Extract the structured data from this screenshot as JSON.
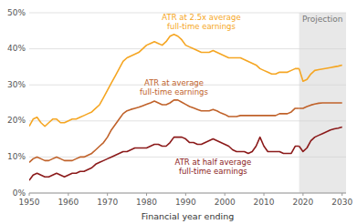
{
  "chart_data": {
    "type": "line",
    "xlabel": "Financial year ending",
    "xlim": [
      1950,
      2031
    ],
    "ylim": [
      0,
      0.5
    ],
    "xticks": [
      1950,
      1960,
      1970,
      1980,
      1990,
      2000,
      2010,
      2020,
      2030
    ],
    "yticks": [
      {
        "value": 0,
        "label": "0%"
      },
      {
        "value": 0.1,
        "label": "10%"
      },
      {
        "value": 0.2,
        "label": "20%"
      },
      {
        "value": 0.3,
        "label": "30%"
      },
      {
        "value": 0.4,
        "label": "40%"
      },
      {
        "value": 0.5,
        "label": "50%"
      }
    ],
    "grid": true,
    "projection_start": 2019,
    "projection_label": "Projection",
    "projection_color": "#e8e8e8",
    "series": [
      {
        "name": "ATR at 2.5x average\nfull-time earnings",
        "color": "#f5a623",
        "x": [
          1950,
          1951,
          1952,
          1953,
          1954,
          1955,
          1956,
          1957,
          1958,
          1959,
          1960,
          1961,
          1962,
          1963,
          1964,
          1965,
          1966,
          1967,
          1968,
          1969,
          1970,
          1971,
          1972,
          1973,
          1974,
          1975,
          1976,
          1977,
          1978,
          1979,
          1980,
          1981,
          1982,
          1983,
          1984,
          1985,
          1986,
          1987,
          1988,
          1989,
          1990,
          1991,
          1992,
          1993,
          1994,
          1995,
          1996,
          1997,
          1998,
          1999,
          2000,
          2001,
          2002,
          2003,
          2004,
          2005,
          2006,
          2007,
          2008,
          2009,
          2010,
          2011,
          2012,
          2013,
          2014,
          2015,
          2016,
          2017,
          2018,
          2019
        ],
        "values": [
          0.185,
          0.205,
          0.21,
          0.195,
          0.185,
          0.195,
          0.205,
          0.205,
          0.195,
          0.195,
          0.2,
          0.205,
          0.205,
          0.21,
          0.215,
          0.22,
          0.225,
          0.235,
          0.245,
          0.265,
          0.285,
          0.305,
          0.325,
          0.345,
          0.365,
          0.375,
          0.38,
          0.385,
          0.39,
          0.4,
          0.41,
          0.415,
          0.42,
          0.415,
          0.41,
          0.42,
          0.435,
          0.44,
          0.435,
          0.425,
          0.41,
          0.405,
          0.4,
          0.395,
          0.39,
          0.39,
          0.39,
          0.395,
          0.39,
          0.385,
          0.38,
          0.375,
          0.375,
          0.375,
          0.375,
          0.37,
          0.365,
          0.36,
          0.355,
          0.345,
          0.34,
          0.335,
          0.33,
          0.33,
          0.335,
          0.335,
          0.335,
          0.34,
          0.345,
          0.345
        ]
      },
      {
        "color": "#f5a623",
        "x": [
          2019,
          2020,
          2021,
          2022,
          2023,
          2024,
          2025,
          2026,
          2027,
          2028,
          2029,
          2030
        ],
        "values": [
          0.345,
          0.31,
          0.315,
          0.33,
          0.34,
          0.342,
          0.344,
          0.346,
          0.348,
          0.35,
          0.352,
          0.355
        ]
      },
      {
        "name": "ATR at average\nfull-time earnings",
        "color": "#c0622a",
        "x": [
          1950,
          1951,
          1952,
          1953,
          1954,
          1955,
          1956,
          1957,
          1958,
          1959,
          1960,
          1961,
          1962,
          1963,
          1964,
          1965,
          1966,
          1967,
          1968,
          1969,
          1970,
          1971,
          1972,
          1973,
          1974,
          1975,
          1976,
          1977,
          1978,
          1979,
          1980,
          1981,
          1982,
          1983,
          1984,
          1985,
          1986,
          1987,
          1988,
          1989,
          1990,
          1991,
          1992,
          1993,
          1994,
          1995,
          1996,
          1997,
          1998,
          1999,
          2000,
          2001,
          2002,
          2003,
          2004,
          2005,
          2006,
          2007,
          2008,
          2009,
          2010,
          2011,
          2012,
          2013,
          2014,
          2015,
          2016,
          2017,
          2018,
          2019
        ],
        "values": [
          0.085,
          0.095,
          0.1,
          0.095,
          0.09,
          0.09,
          0.095,
          0.1,
          0.095,
          0.09,
          0.09,
          0.09,
          0.095,
          0.1,
          0.1,
          0.105,
          0.11,
          0.12,
          0.13,
          0.14,
          0.155,
          0.175,
          0.19,
          0.205,
          0.22,
          0.228,
          0.232,
          0.235,
          0.238,
          0.242,
          0.246,
          0.25,
          0.255,
          0.25,
          0.245,
          0.245,
          0.25,
          0.258,
          0.258,
          0.252,
          0.246,
          0.24,
          0.236,
          0.232,
          0.228,
          0.228,
          0.228,
          0.232,
          0.228,
          0.222,
          0.218,
          0.212,
          0.212,
          0.212,
          0.215,
          0.215,
          0.215,
          0.215,
          0.215,
          0.215,
          0.215,
          0.215,
          0.215,
          0.215,
          0.22,
          0.22,
          0.22,
          0.225,
          0.235,
          0.235
        ]
      },
      {
        "color": "#c0622a",
        "x": [
          2019,
          2020,
          2021,
          2022,
          2023,
          2024,
          2025,
          2026,
          2027,
          2028,
          2029,
          2030
        ],
        "values": [
          0.235,
          0.235,
          0.24,
          0.244,
          0.247,
          0.249,
          0.25,
          0.25,
          0.25,
          0.25,
          0.25,
          0.25
        ]
      },
      {
        "name": "ATR at half average\nfull-time earnings",
        "color": "#8b1a1a",
        "x": [
          1950,
          1951,
          1952,
          1953,
          1954,
          1955,
          1956,
          1957,
          1958,
          1959,
          1960,
          1961,
          1962,
          1963,
          1964,
          1965,
          1966,
          1967,
          1968,
          1969,
          1970,
          1971,
          1972,
          1973,
          1974,
          1975,
          1976,
          1977,
          1978,
          1979,
          1980,
          1981,
          1982,
          1983,
          1984,
          1985,
          1986,
          1987,
          1988,
          1989,
          1990,
          1991,
          1992,
          1993,
          1994,
          1995,
          1996,
          1997,
          1998,
          1999,
          2000,
          2001,
          2002,
          2003,
          2004,
          2005,
          2006,
          2007,
          2008,
          2009,
          2010,
          2011,
          2012,
          2013,
          2014,
          2015,
          2016,
          2017,
          2018,
          2019
        ],
        "values": [
          0.035,
          0.05,
          0.055,
          0.05,
          0.045,
          0.045,
          0.05,
          0.055,
          0.05,
          0.045,
          0.05,
          0.055,
          0.055,
          0.06,
          0.06,
          0.065,
          0.07,
          0.08,
          0.085,
          0.09,
          0.095,
          0.1,
          0.105,
          0.11,
          0.115,
          0.115,
          0.12,
          0.125,
          0.125,
          0.125,
          0.125,
          0.13,
          0.135,
          0.135,
          0.13,
          0.13,
          0.14,
          0.155,
          0.155,
          0.155,
          0.15,
          0.14,
          0.14,
          0.135,
          0.135,
          0.14,
          0.145,
          0.15,
          0.145,
          0.14,
          0.135,
          0.13,
          0.12,
          0.115,
          0.115,
          0.115,
          0.11,
          0.115,
          0.13,
          0.155,
          0.13,
          0.115,
          0.115,
          0.115,
          0.115,
          0.11,
          0.11,
          0.11,
          0.13,
          0.13
        ]
      },
      {
        "color": "#8b1a1a",
        "x": [
          2019,
          2020,
          2021,
          2022,
          2023,
          2024,
          2025,
          2026,
          2027,
          2028,
          2029,
          2030
        ],
        "values": [
          0.13,
          0.115,
          0.125,
          0.145,
          0.155,
          0.16,
          0.165,
          0.17,
          0.175,
          0.178,
          0.18,
          0.183
        ]
      }
    ]
  }
}
